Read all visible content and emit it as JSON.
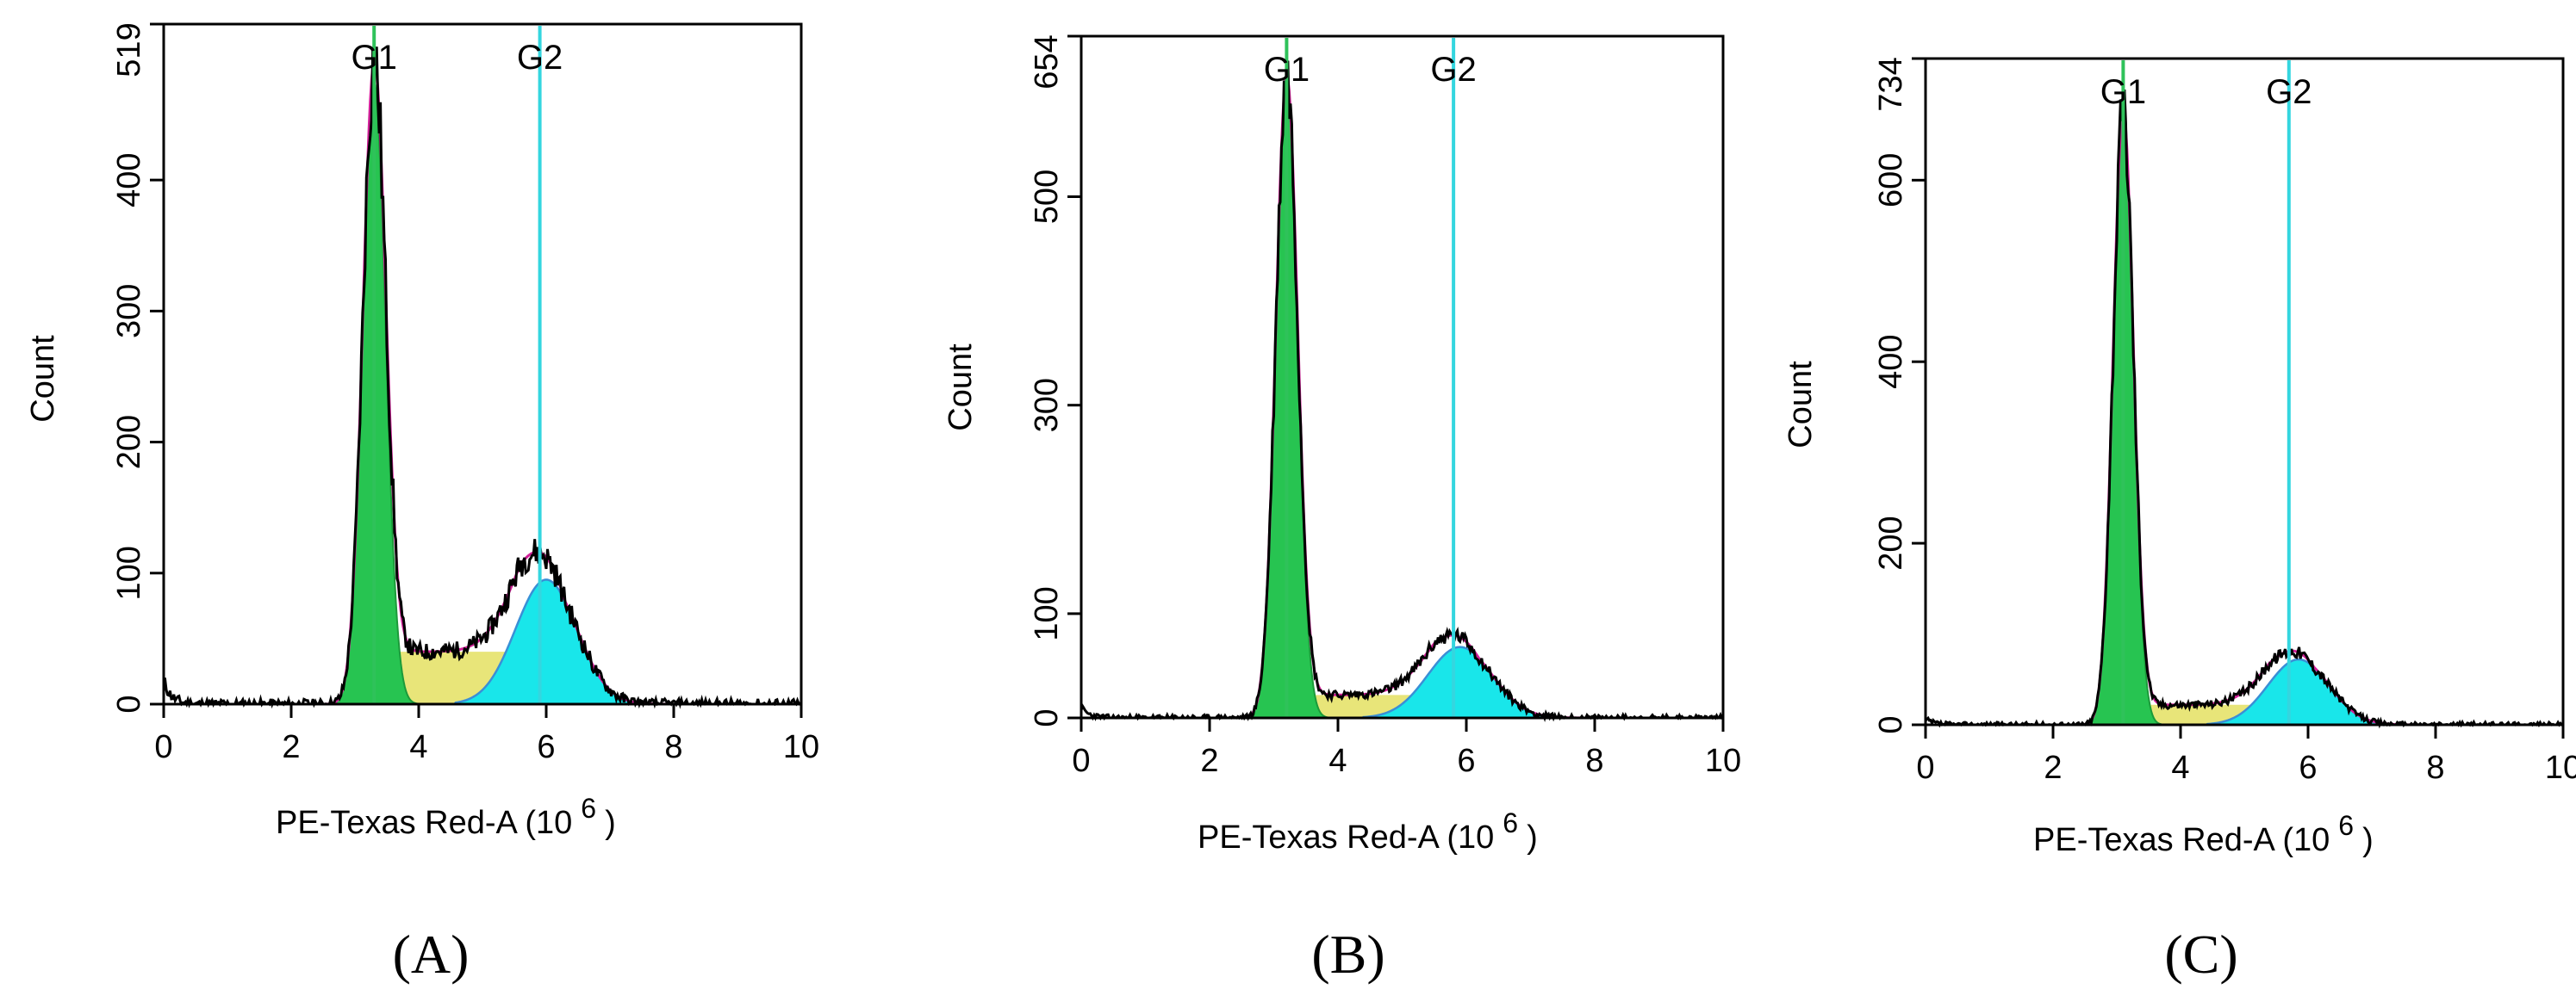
{
  "colors": {
    "g1_fill": "#27c451",
    "g1_dark": "#1c9a3a",
    "g2_fill": "#19e6ea",
    "s_fill": "#e6e26a",
    "fit_line": "#d11f98",
    "g2_outline": "#3a8fd6",
    "histogram": "#000000",
    "g1_marker": "#2fc25a",
    "g2_marker": "#34d6df"
  },
  "chart_data": [
    {
      "type": "histogram",
      "panel_label": "(A)",
      "xlabel": "PE-Texas Red-A  (10",
      "xlabel_exp": "6",
      "xlabel_close": ")",
      "ylabel": "Count",
      "xlim": [
        0,
        10
      ],
      "ylim": [
        0,
        519
      ],
      "xticks": [
        0,
        2,
        4,
        6,
        8,
        10
      ],
      "yticks": [
        0,
        100,
        200,
        300,
        400
      ],
      "ymax_label": "519",
      "markers": [
        {
          "name": "G1",
          "x": 3.3
        },
        {
          "name": "G2",
          "x": 5.9
        }
      ],
      "g1": {
        "center": 3.3,
        "sigma": 0.18,
        "peak": 475
      },
      "g2": {
        "center": 6.0,
        "sigma": 0.48,
        "peak": 95
      },
      "s_phase": {
        "start": 3.4,
        "end": 5.9,
        "level": 40
      },
      "debris_peak": 18,
      "noise_level": 4,
      "seed": 11
    },
    {
      "type": "histogram",
      "panel_label": "(B)",
      "xlabel": "PE-Texas Red-A  (10",
      "xlabel_exp": "6",
      "xlabel_close": ")",
      "ylabel": "Count",
      "xlim": [
        0,
        10
      ],
      "ylim": [
        0,
        654
      ],
      "xticks": [
        0,
        2,
        4,
        6,
        8,
        10
      ],
      "yticks": [
        0,
        100,
        300,
        500
      ],
      "ymax_label": "654",
      "markers": [
        {
          "name": "G1",
          "x": 3.2
        },
        {
          "name": "G2",
          "x": 5.8
        }
      ],
      "g1": {
        "center": 3.2,
        "sigma": 0.17,
        "peak": 610
      },
      "g2": {
        "center": 5.9,
        "sigma": 0.5,
        "peak": 68
      },
      "s_phase": {
        "start": 3.35,
        "end": 5.8,
        "level": 22
      },
      "debris_peak": 10,
      "noise_level": 3,
      "seed": 23
    },
    {
      "type": "histogram",
      "panel_label": "(C)",
      "xlabel": "PE-Texas Red-A  (10",
      "xlabel_exp": "6",
      "xlabel_close": ")",
      "ylabel": "Count",
      "xlim": [
        0,
        10
      ],
      "ylim": [
        0,
        734
      ],
      "xticks": [
        0,
        2,
        4,
        6,
        8,
        10
      ],
      "yticks": [
        0,
        200,
        400,
        600
      ],
      "ymax_label": "734",
      "markers": [
        {
          "name": "G1",
          "x": 3.1
        },
        {
          "name": "G2",
          "x": 5.7
        }
      ],
      "g1": {
        "center": 3.1,
        "sigma": 0.16,
        "peak": 670
      },
      "g2": {
        "center": 5.85,
        "sigma": 0.48,
        "peak": 72
      },
      "s_phase": {
        "start": 3.25,
        "end": 5.7,
        "level": 22
      },
      "debris_peak": 6,
      "noise_level": 3,
      "seed": 37
    }
  ]
}
